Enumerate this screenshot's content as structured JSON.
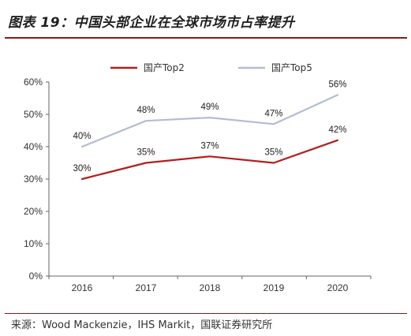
{
  "header": {
    "title": "图表 19：中国头部企业在全球市场市占率提升"
  },
  "footer": {
    "source": "来源：Wood Mackenzie，IHS Markit，国联证券研究所"
  },
  "chart_data": {
    "type": "line",
    "title": "",
    "xlabel": "",
    "ylabel": "",
    "categories": [
      "2016",
      "2017",
      "2018",
      "2019",
      "2020"
    ],
    "ylim": [
      0,
      60
    ],
    "yticks": [
      "0%",
      "10%",
      "20%",
      "30%",
      "40%",
      "50%",
      "60%"
    ],
    "grid": false,
    "legend": "top-center",
    "series": [
      {
        "name": "国产Top2",
        "color": "#b21f1f",
        "values": [
          30,
          35,
          37,
          35,
          42
        ],
        "labels": [
          "30%",
          "35%",
          "37%",
          "35%",
          "42%"
        ]
      },
      {
        "name": "国产Top5",
        "color": "#b4bcd6",
        "values": [
          40,
          48,
          49,
          47,
          56
        ],
        "labels": [
          "40%",
          "48%",
          "49%",
          "47%",
          "56%"
        ]
      }
    ]
  }
}
